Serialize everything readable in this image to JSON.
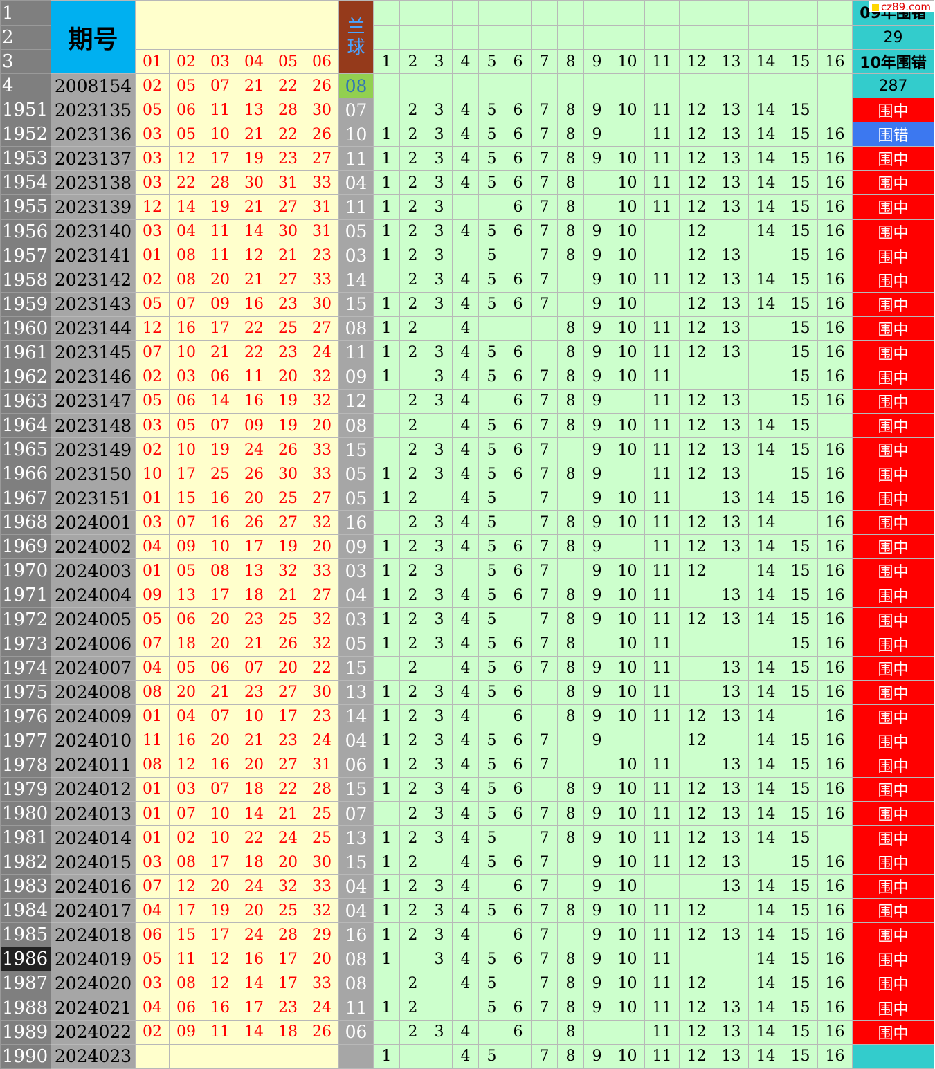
{
  "header": {
    "row_labels": [
      "1",
      "2",
      "3",
      "4"
    ],
    "issue_label": "期号",
    "red_headers": [
      "01",
      "02",
      "03",
      "04",
      "05",
      "06"
    ],
    "blue_label": "兰球",
    "num_headers": [
      "1",
      "2",
      "3",
      "4",
      "5",
      "6",
      "7",
      "8",
      "9",
      "10",
      "11",
      "12",
      "13",
      "14",
      "15",
      "16"
    ],
    "stats": [
      "09年围错",
      "29",
      "10年围错",
      "287"
    ],
    "ref_issue": "2008154",
    "ref_reds": [
      "02",
      "05",
      "07",
      "21",
      "22",
      "26"
    ],
    "ref_blue": "08"
  },
  "watermark": "cz89.com",
  "rows": [
    {
      "rn": "1951",
      "issue": "2023135",
      "reds": [
        "05",
        "06",
        "11",
        "13",
        "28",
        "30"
      ],
      "blue": "07",
      "nums": [
        "",
        "2",
        "3",
        "4",
        "5",
        "6",
        "7",
        "8",
        "9",
        "10",
        "11",
        "12",
        "13",
        "14",
        "15",
        ""
      ],
      "status": "围中"
    },
    {
      "rn": "1952",
      "issue": "2023136",
      "reds": [
        "03",
        "05",
        "10",
        "21",
        "22",
        "26"
      ],
      "blue": "10",
      "nums": [
        "1",
        "2",
        "3",
        "4",
        "5",
        "6",
        "7",
        "8",
        "9",
        "",
        "11",
        "12",
        "13",
        "14",
        "15",
        "16"
      ],
      "status": "围错"
    },
    {
      "rn": "1953",
      "issue": "2023137",
      "reds": [
        "03",
        "12",
        "17",
        "19",
        "23",
        "27"
      ],
      "blue": "11",
      "nums": [
        "1",
        "2",
        "3",
        "4",
        "5",
        "6",
        "7",
        "8",
        "9",
        "10",
        "11",
        "12",
        "13",
        "14",
        "15",
        "16"
      ],
      "status": "围中"
    },
    {
      "rn": "1954",
      "issue": "2023138",
      "reds": [
        "03",
        "22",
        "28",
        "30",
        "31",
        "33"
      ],
      "blue": "04",
      "nums": [
        "1",
        "2",
        "3",
        "4",
        "5",
        "6",
        "7",
        "8",
        "",
        "10",
        "11",
        "12",
        "13",
        "14",
        "15",
        "16"
      ],
      "status": "围中"
    },
    {
      "rn": "1955",
      "issue": "2023139",
      "reds": [
        "12",
        "14",
        "19",
        "21",
        "27",
        "31"
      ],
      "blue": "11",
      "nums": [
        "1",
        "2",
        "3",
        "",
        "",
        "6",
        "7",
        "8",
        "",
        "10",
        "11",
        "12",
        "13",
        "14",
        "15",
        "16"
      ],
      "status": "围中"
    },
    {
      "rn": "1956",
      "issue": "2023140",
      "reds": [
        "03",
        "04",
        "11",
        "14",
        "30",
        "31"
      ],
      "blue": "05",
      "nums": [
        "1",
        "2",
        "3",
        "4",
        "5",
        "6",
        "7",
        "8",
        "9",
        "10",
        "",
        "12",
        "",
        "14",
        "15",
        "16"
      ],
      "status": "围中"
    },
    {
      "rn": "1957",
      "issue": "2023141",
      "reds": [
        "01",
        "08",
        "11",
        "12",
        "21",
        "23"
      ],
      "blue": "03",
      "nums": [
        "1",
        "2",
        "3",
        "",
        "5",
        "",
        "7",
        "8",
        "9",
        "10",
        "",
        "12",
        "13",
        "",
        "15",
        "16"
      ],
      "status": "围中"
    },
    {
      "rn": "1958",
      "issue": "2023142",
      "reds": [
        "02",
        "08",
        "20",
        "21",
        "27",
        "33"
      ],
      "blue": "14",
      "nums": [
        "",
        "2",
        "3",
        "4",
        "5",
        "6",
        "7",
        "",
        "9",
        "10",
        "11",
        "12",
        "13",
        "14",
        "15",
        "16"
      ],
      "status": "围中"
    },
    {
      "rn": "1959",
      "issue": "2023143",
      "reds": [
        "05",
        "07",
        "09",
        "16",
        "23",
        "30"
      ],
      "blue": "15",
      "nums": [
        "1",
        "2",
        "3",
        "4",
        "5",
        "6",
        "7",
        "",
        "9",
        "10",
        "",
        "12",
        "13",
        "14",
        "15",
        "16"
      ],
      "status": "围中"
    },
    {
      "rn": "1960",
      "issue": "2023144",
      "reds": [
        "12",
        "16",
        "17",
        "22",
        "25",
        "27"
      ],
      "blue": "08",
      "nums": [
        "1",
        "2",
        "",
        "4",
        "",
        "",
        "",
        "8",
        "9",
        "10",
        "11",
        "12",
        "13",
        "",
        "15",
        "16"
      ],
      "status": "围中"
    },
    {
      "rn": "1961",
      "issue": "2023145",
      "reds": [
        "07",
        "10",
        "21",
        "22",
        "23",
        "24"
      ],
      "blue": "11",
      "nums": [
        "1",
        "2",
        "3",
        "4",
        "5",
        "6",
        "",
        "8",
        "9",
        "10",
        "11",
        "12",
        "13",
        "",
        "15",
        "16"
      ],
      "status": "围中"
    },
    {
      "rn": "1962",
      "issue": "2023146",
      "reds": [
        "02",
        "03",
        "06",
        "11",
        "20",
        "32"
      ],
      "blue": "09",
      "nums": [
        "1",
        "",
        "3",
        "4",
        "5",
        "6",
        "7",
        "8",
        "9",
        "10",
        "11",
        "",
        "",
        "",
        "15",
        "16"
      ],
      "status": "围中"
    },
    {
      "rn": "1963",
      "issue": "2023147",
      "reds": [
        "05",
        "06",
        "14",
        "16",
        "19",
        "32"
      ],
      "blue": "12",
      "nums": [
        "",
        "2",
        "3",
        "4",
        "",
        "6",
        "7",
        "8",
        "9",
        "",
        "11",
        "12",
        "13",
        "",
        "15",
        "16"
      ],
      "status": "围中"
    },
    {
      "rn": "1964",
      "issue": "2023148",
      "reds": [
        "03",
        "05",
        "07",
        "09",
        "19",
        "20"
      ],
      "blue": "08",
      "nums": [
        "",
        "2",
        "",
        "4",
        "5",
        "6",
        "7",
        "8",
        "9",
        "10",
        "11",
        "12",
        "13",
        "14",
        "15",
        ""
      ],
      "status": "围中"
    },
    {
      "rn": "1965",
      "issue": "2023149",
      "reds": [
        "02",
        "10",
        "19",
        "24",
        "26",
        "33"
      ],
      "blue": "15",
      "nums": [
        "",
        "2",
        "3",
        "4",
        "5",
        "6",
        "7",
        "",
        "9",
        "10",
        "11",
        "12",
        "13",
        "14",
        "15",
        "16"
      ],
      "status": "围中"
    },
    {
      "rn": "1966",
      "issue": "2023150",
      "reds": [
        "10",
        "17",
        "25",
        "26",
        "30",
        "33"
      ],
      "blue": "05",
      "nums": [
        "1",
        "2",
        "3",
        "4",
        "5",
        "6",
        "7",
        "8",
        "9",
        "",
        "11",
        "12",
        "13",
        "",
        "15",
        "16"
      ],
      "status": "围中"
    },
    {
      "rn": "1967",
      "issue": "2023151",
      "reds": [
        "01",
        "15",
        "16",
        "20",
        "25",
        "27"
      ],
      "blue": "05",
      "nums": [
        "1",
        "2",
        "",
        "4",
        "5",
        "",
        "7",
        "",
        "9",
        "10",
        "11",
        "",
        "13",
        "14",
        "15",
        "16"
      ],
      "status": "围中"
    },
    {
      "rn": "1968",
      "issue": "2024001",
      "reds": [
        "03",
        "07",
        "16",
        "26",
        "27",
        "32"
      ],
      "blue": "16",
      "nums": [
        "",
        "2",
        "3",
        "4",
        "5",
        "",
        "7",
        "8",
        "9",
        "10",
        "11",
        "12",
        "13",
        "14",
        "",
        "16"
      ],
      "status": "围中"
    },
    {
      "rn": "1969",
      "issue": "2024002",
      "reds": [
        "04",
        "09",
        "10",
        "17",
        "19",
        "20"
      ],
      "blue": "09",
      "nums": [
        "1",
        "2",
        "3",
        "4",
        "5",
        "6",
        "7",
        "8",
        "9",
        "",
        "11",
        "12",
        "13",
        "14",
        "15",
        "16"
      ],
      "status": "围中"
    },
    {
      "rn": "1970",
      "issue": "2024003",
      "reds": [
        "01",
        "05",
        "08",
        "13",
        "32",
        "33"
      ],
      "blue": "03",
      "nums": [
        "1",
        "2",
        "3",
        "",
        "5",
        "6",
        "7",
        "",
        "9",
        "10",
        "11",
        "12",
        "",
        "14",
        "15",
        "16"
      ],
      "status": "围中"
    },
    {
      "rn": "1971",
      "issue": "2024004",
      "reds": [
        "09",
        "13",
        "17",
        "18",
        "21",
        "27"
      ],
      "blue": "04",
      "nums": [
        "1",
        "2",
        "3",
        "4",
        "5",
        "6",
        "7",
        "8",
        "9",
        "10",
        "11",
        "",
        "13",
        "14",
        "15",
        "16"
      ],
      "status": "围中"
    },
    {
      "rn": "1972",
      "issue": "2024005",
      "reds": [
        "05",
        "06",
        "20",
        "23",
        "25",
        "32"
      ],
      "blue": "03",
      "nums": [
        "1",
        "2",
        "3",
        "4",
        "5",
        "",
        "7",
        "8",
        "9",
        "10",
        "11",
        "12",
        "13",
        "14",
        "15",
        "16"
      ],
      "status": "围中"
    },
    {
      "rn": "1973",
      "issue": "2024006",
      "reds": [
        "07",
        "18",
        "20",
        "21",
        "26",
        "32"
      ],
      "blue": "05",
      "nums": [
        "1",
        "2",
        "3",
        "4",
        "5",
        "6",
        "7",
        "8",
        "",
        "10",
        "11",
        "",
        "",
        "",
        "15",
        "16"
      ],
      "status": "围中"
    },
    {
      "rn": "1974",
      "issue": "2024007",
      "reds": [
        "04",
        "05",
        "06",
        "07",
        "20",
        "22"
      ],
      "blue": "15",
      "nums": [
        "",
        "2",
        "",
        "4",
        "5",
        "6",
        "7",
        "8",
        "9",
        "10",
        "11",
        "",
        "13",
        "14",
        "15",
        "16"
      ],
      "status": "围中"
    },
    {
      "rn": "1975",
      "issue": "2024008",
      "reds": [
        "08",
        "20",
        "21",
        "23",
        "27",
        "30"
      ],
      "blue": "13",
      "nums": [
        "1",
        "2",
        "3",
        "4",
        "5",
        "6",
        "",
        "8",
        "9",
        "10",
        "11",
        "",
        "13",
        "14",
        "15",
        "16"
      ],
      "status": "围中"
    },
    {
      "rn": "1976",
      "issue": "2024009",
      "reds": [
        "01",
        "04",
        "07",
        "10",
        "17",
        "23"
      ],
      "blue": "14",
      "nums": [
        "1",
        "2",
        "3",
        "4",
        "",
        "6",
        "",
        "8",
        "9",
        "10",
        "11",
        "12",
        "13",
        "14",
        "",
        "16"
      ],
      "status": "围中"
    },
    {
      "rn": "1977",
      "issue": "2024010",
      "reds": [
        "11",
        "16",
        "20",
        "21",
        "23",
        "24"
      ],
      "blue": "04",
      "nums": [
        "1",
        "2",
        "3",
        "4",
        "5",
        "6",
        "7",
        "",
        "9",
        "",
        "",
        "12",
        "",
        "14",
        "15",
        "16"
      ],
      "status": "围中"
    },
    {
      "rn": "1978",
      "issue": "2024011",
      "reds": [
        "08",
        "12",
        "16",
        "20",
        "27",
        "31"
      ],
      "blue": "06",
      "nums": [
        "1",
        "2",
        "3",
        "4",
        "5",
        "6",
        "7",
        "",
        "",
        "10",
        "11",
        "",
        "13",
        "14",
        "15",
        "16"
      ],
      "status": "围中"
    },
    {
      "rn": "1979",
      "issue": "2024012",
      "reds": [
        "01",
        "03",
        "07",
        "18",
        "22",
        "28"
      ],
      "blue": "15",
      "nums": [
        "1",
        "2",
        "3",
        "4",
        "5",
        "6",
        "",
        "8",
        "9",
        "10",
        "11",
        "12",
        "13",
        "14",
        "15",
        "16"
      ],
      "status": "围中"
    },
    {
      "rn": "1980",
      "issue": "2024013",
      "reds": [
        "01",
        "07",
        "10",
        "14",
        "21",
        "25"
      ],
      "blue": "07",
      "nums": [
        "",
        "2",
        "3",
        "4",
        "5",
        "6",
        "7",
        "8",
        "9",
        "10",
        "11",
        "12",
        "13",
        "14",
        "15",
        "16"
      ],
      "status": "围中"
    },
    {
      "rn": "1981",
      "issue": "2024014",
      "reds": [
        "01",
        "02",
        "10",
        "22",
        "24",
        "25"
      ],
      "blue": "13",
      "nums": [
        "1",
        "2",
        "3",
        "4",
        "5",
        "",
        "7",
        "8",
        "9",
        "10",
        "11",
        "12",
        "13",
        "14",
        "15",
        ""
      ],
      "status": "围中"
    },
    {
      "rn": "1982",
      "issue": "2024015",
      "reds": [
        "03",
        "08",
        "17",
        "18",
        "20",
        "30"
      ],
      "blue": "15",
      "nums": [
        "1",
        "2",
        "",
        "4",
        "5",
        "6",
        "7",
        "",
        "9",
        "10",
        "11",
        "12",
        "13",
        "",
        "15",
        "16"
      ],
      "status": "围中"
    },
    {
      "rn": "1983",
      "issue": "2024016",
      "reds": [
        "07",
        "12",
        "20",
        "24",
        "32",
        "33"
      ],
      "blue": "04",
      "nums": [
        "1",
        "2",
        "3",
        "4",
        "",
        "6",
        "7",
        "",
        "9",
        "10",
        "",
        "",
        "13",
        "14",
        "15",
        "16"
      ],
      "status": "围中"
    },
    {
      "rn": "1984",
      "issue": "2024017",
      "reds": [
        "04",
        "17",
        "19",
        "20",
        "25",
        "32"
      ],
      "blue": "04",
      "nums": [
        "1",
        "2",
        "3",
        "4",
        "5",
        "6",
        "7",
        "8",
        "9",
        "10",
        "11",
        "12",
        "",
        "14",
        "15",
        "16"
      ],
      "status": "围中"
    },
    {
      "rn": "1985",
      "issue": "2024018",
      "reds": [
        "06",
        "15",
        "17",
        "24",
        "28",
        "29"
      ],
      "blue": "16",
      "nums": [
        "1",
        "2",
        "3",
        "4",
        "",
        "6",
        "7",
        "",
        "9",
        "10",
        "11",
        "12",
        "13",
        "14",
        "15",
        "16"
      ],
      "status": "围中"
    },
    {
      "rn": "1986",
      "issue": "2024019",
      "reds": [
        "05",
        "11",
        "12",
        "16",
        "17",
        "20"
      ],
      "blue": "08",
      "nums": [
        "1",
        "",
        "3",
        "4",
        "5",
        "6",
        "7",
        "8",
        "9",
        "10",
        "11",
        "",
        "",
        "14",
        "15",
        "16"
      ],
      "status": "围中"
    },
    {
      "rn": "1987",
      "issue": "2024020",
      "reds": [
        "03",
        "08",
        "12",
        "14",
        "17",
        "33"
      ],
      "blue": "08",
      "nums": [
        "",
        "2",
        "",
        "4",
        "5",
        "",
        "7",
        "8",
        "9",
        "10",
        "11",
        "12",
        "",
        "14",
        "15",
        "16"
      ],
      "status": "围中"
    },
    {
      "rn": "1988",
      "issue": "2024021",
      "reds": [
        "04",
        "06",
        "16",
        "17",
        "23",
        "24"
      ],
      "blue": "11",
      "nums": [
        "1",
        "2",
        "",
        "",
        "5",
        "6",
        "7",
        "8",
        "9",
        "10",
        "11",
        "12",
        "13",
        "14",
        "15",
        "16"
      ],
      "status": "围中"
    },
    {
      "rn": "1989",
      "issue": "2024022",
      "reds": [
        "02",
        "09",
        "11",
        "14",
        "18",
        "26"
      ],
      "blue": "06",
      "nums": [
        "",
        "2",
        "3",
        "4",
        "",
        "6",
        "",
        "8",
        "",
        "",
        "11",
        "12",
        "13",
        "14",
        "15",
        "16"
      ],
      "status": "围中"
    },
    {
      "rn": "1990",
      "issue": "2024023",
      "reds": [
        "",
        "",
        "",
        "",
        "",
        ""
      ],
      "blue": "",
      "nums": [
        "1",
        "",
        "",
        "4",
        "5",
        "",
        "7",
        "8",
        "9",
        "10",
        "11",
        "12",
        "13",
        "14",
        "15",
        "16"
      ],
      "status": ""
    }
  ],
  "selected_row": "1986"
}
